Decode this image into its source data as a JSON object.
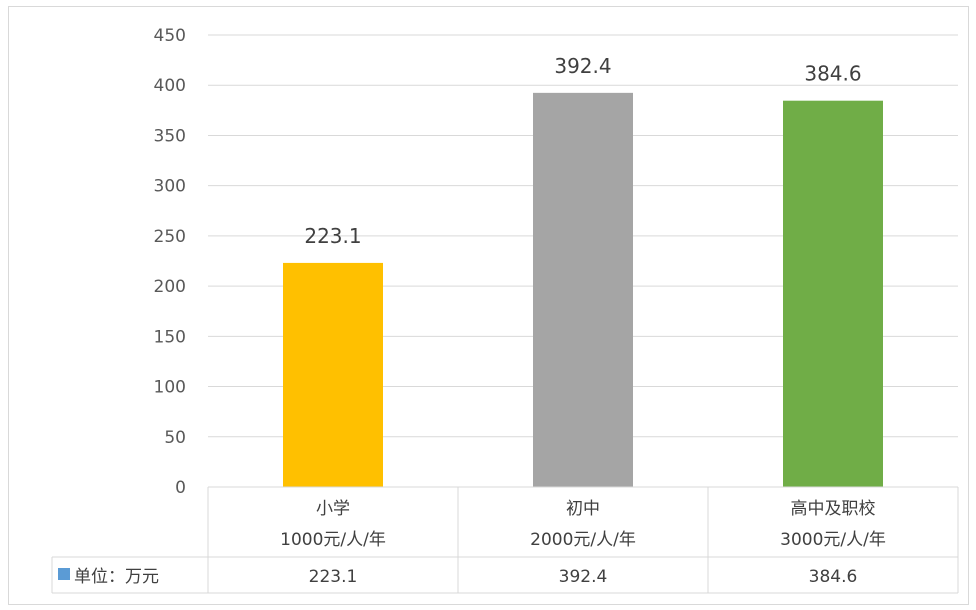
{
  "chart_data": {
    "type": "bar",
    "categories": [
      {
        "name": "小学",
        "note": "1000元/人/年"
      },
      {
        "name": "初中",
        "note": "2000元/人/年"
      },
      {
        "name": "高中及职校",
        "note": "3000元/人/年"
      }
    ],
    "values": [
      223.1,
      392.4,
      384.6
    ],
    "value_labels": [
      "223.1",
      "392.4",
      "384.6"
    ],
    "colors": [
      "#FFC000",
      "#A5A5A5",
      "#70AD47"
    ],
    "ylim": [
      0,
      450
    ],
    "yticks": [
      "0",
      "50",
      "100",
      "150",
      "200",
      "250",
      "300",
      "350",
      "400",
      "450"
    ],
    "grid": true,
    "data_table": {
      "series_name": "单位：万元",
      "legend_color": "#5B9BD5",
      "values": [
        "223.1",
        "392.4",
        "384.6"
      ]
    }
  }
}
